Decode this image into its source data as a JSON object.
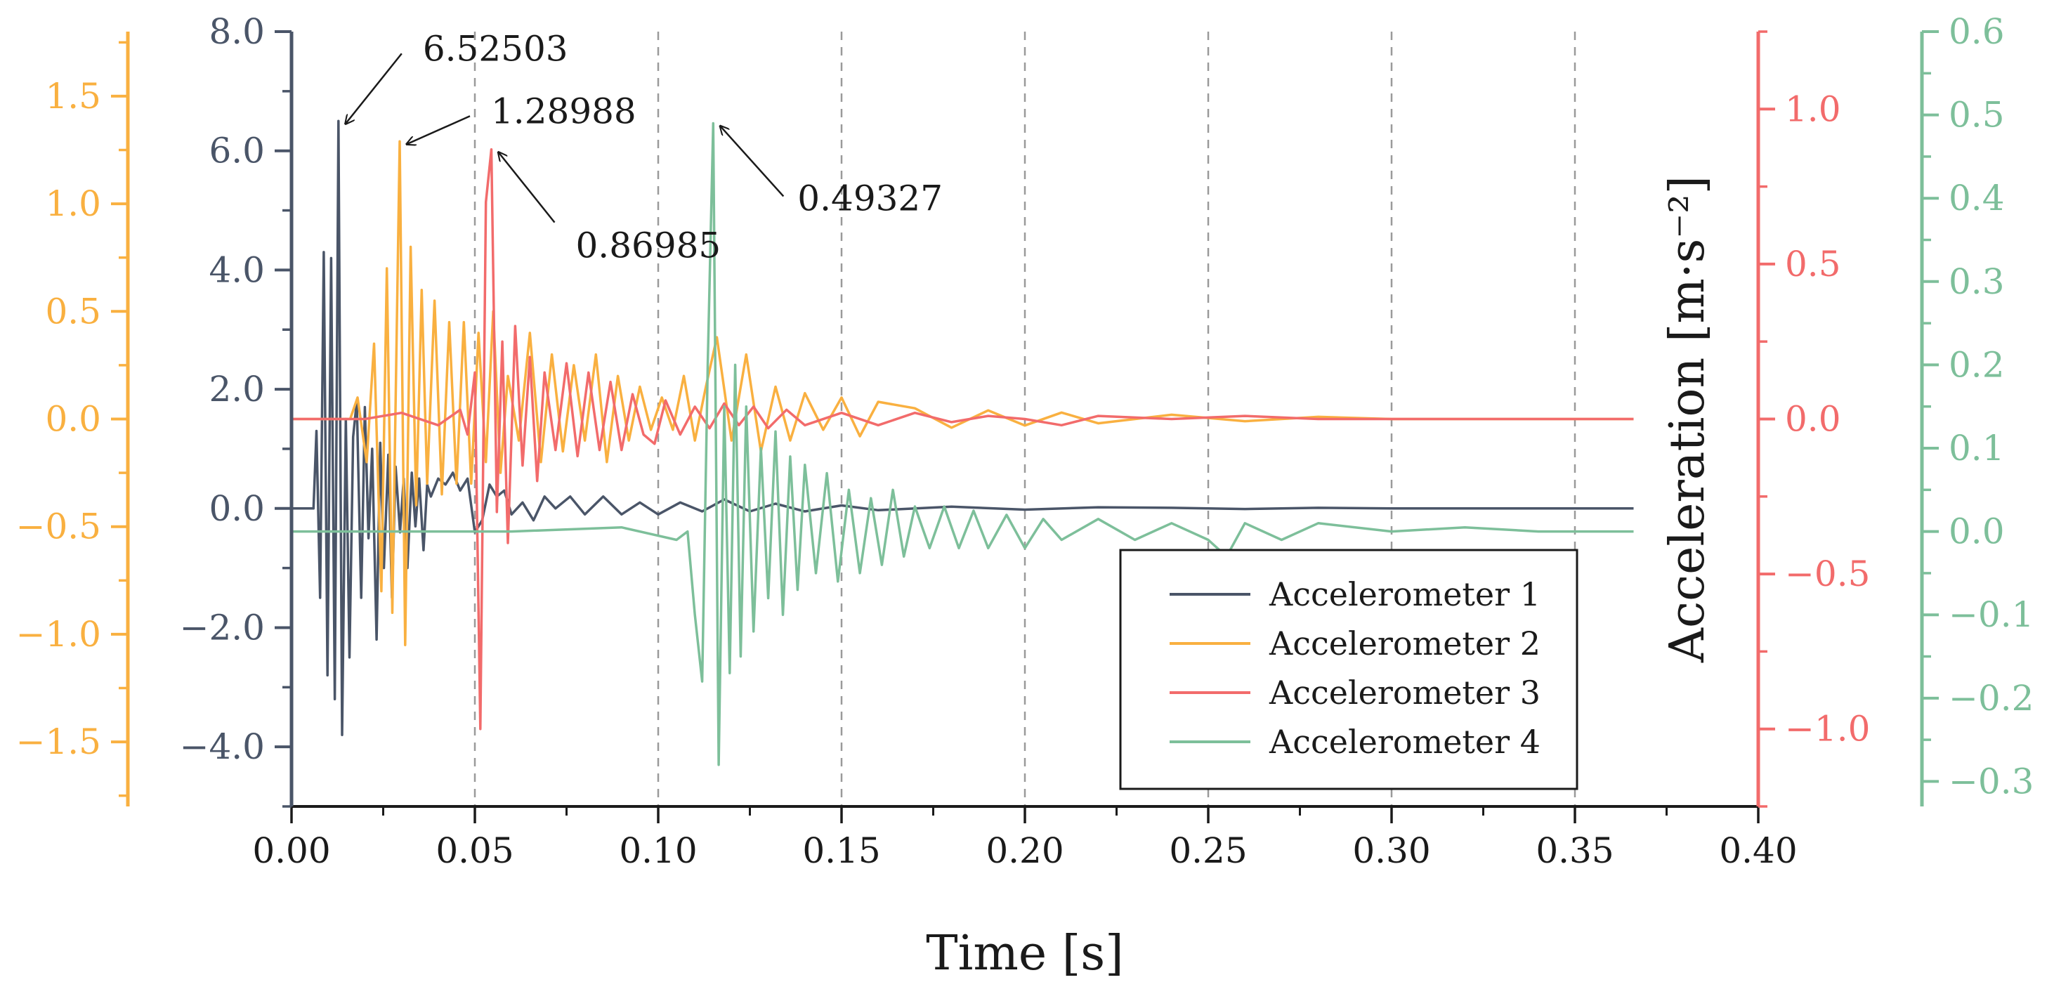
{
  "chart_data": {
    "type": "line",
    "xlabel": "Time [s]",
    "ylabel": "Acceleration [m·s⁻²]",
    "xlim": [
      0.0,
      0.4
    ],
    "x_ticks": [
      "0.00",
      "0.05",
      "0.10",
      "0.15",
      "0.20",
      "0.25",
      "0.30",
      "0.35",
      "0.40"
    ],
    "grid": "vertical dashed lines at 0.05 s intervals",
    "legend_position": "bottom-right",
    "axes": [
      {
        "id": "a1",
        "side": "left-inner",
        "color": "#4a5568",
        "ylim": [
          -5.0,
          8.0
        ],
        "ticks": [
          "8.0",
          "6.0",
          "4.0",
          "2.0",
          "0.0",
          "−2.0",
          "−4.0"
        ],
        "tick_values": [
          8,
          6,
          4,
          2,
          0,
          -2,
          -4
        ]
      },
      {
        "id": "a2",
        "side": "left-outer",
        "color": "#f9b040",
        "ylim": [
          -1.8,
          1.8
        ],
        "ticks": [
          "1.5",
          "1.0",
          "0.5",
          "0.0",
          "−0.5",
          "−1.0",
          "−1.5"
        ],
        "tick_values": [
          1.5,
          1.0,
          0.5,
          0.0,
          -0.5,
          -1.0,
          -1.5
        ]
      },
      {
        "id": "a3",
        "side": "right-inner",
        "color": "#f26b6b",
        "ylim": [
          -1.25,
          1.25
        ],
        "ticks": [
          "1.0",
          "0.5",
          "0.0",
          "−0.5",
          "−1.0"
        ],
        "tick_values": [
          1.0,
          0.5,
          0.0,
          -0.5,
          -1.0
        ]
      },
      {
        "id": "a4",
        "side": "right-outer",
        "color": "#7dbf9a",
        "ylim": [
          -0.33,
          0.6
        ],
        "ticks": [
          "0.6",
          "0.5",
          "0.4",
          "0.3",
          "0.2",
          "0.1",
          "0.0",
          "−0.1",
          "−0.2",
          "−0.3"
        ],
        "tick_values": [
          0.6,
          0.5,
          0.4,
          0.3,
          0.2,
          0.1,
          0.0,
          -0.1,
          -0.2,
          -0.3
        ]
      }
    ],
    "series": [
      {
        "name": "Accelerometer 1",
        "axis": "a1",
        "color": "#4a5568",
        "x": [
          0.0,
          0.006,
          0.0068,
          0.0078,
          0.0088,
          0.0098,
          0.0108,
          0.0118,
          0.0128,
          0.0138,
          0.0148,
          0.0158,
          0.0168,
          0.0178,
          0.019,
          0.02,
          0.021,
          0.022,
          0.0232,
          0.0242,
          0.0252,
          0.0264,
          0.0274,
          0.0284,
          0.0296,
          0.0306,
          0.0316,
          0.0328,
          0.0338,
          0.0348,
          0.036,
          0.037,
          0.038,
          0.04,
          0.042,
          0.044,
          0.046,
          0.048,
          0.05,
          0.052,
          0.054,
          0.056,
          0.058,
          0.06,
          0.063,
          0.066,
          0.069,
          0.072,
          0.076,
          0.08,
          0.085,
          0.09,
          0.095,
          0.1,
          0.106,
          0.112,
          0.118,
          0.125,
          0.132,
          0.14,
          0.15,
          0.16,
          0.18,
          0.2,
          0.22,
          0.24,
          0.26,
          0.28,
          0.3,
          0.32,
          0.34,
          0.366
        ],
        "y": [
          0.0,
          0.0,
          1.3,
          -1.5,
          4.3,
          -2.8,
          4.2,
          -3.2,
          6.5,
          -3.8,
          1.5,
          -2.5,
          1.2,
          1.8,
          -1.5,
          1.7,
          -0.5,
          1.0,
          -2.2,
          1.1,
          -1.0,
          0.9,
          -1.5,
          0.7,
          -0.4,
          0.5,
          -1.0,
          0.6,
          -0.3,
          0.5,
          -0.7,
          0.4,
          0.2,
          0.5,
          0.4,
          0.6,
          0.3,
          0.5,
          -0.4,
          -0.2,
          0.4,
          0.2,
          0.3,
          -0.1,
          0.1,
          -0.2,
          0.2,
          0.0,
          0.2,
          -0.1,
          0.2,
          -0.1,
          0.1,
          -0.1,
          0.1,
          -0.05,
          0.15,
          -0.05,
          0.08,
          -0.05,
          0.05,
          -0.03,
          0.03,
          -0.02,
          0.02,
          0.01,
          -0.01,
          0.01,
          0.0,
          0.0,
          0.0,
          0.0
        ]
      },
      {
        "name": "Accelerometer 2",
        "axis": "a2",
        "color": "#f9b040",
        "x": [
          0.0,
          0.016,
          0.018,
          0.0205,
          0.0225,
          0.0245,
          0.026,
          0.0275,
          0.0295,
          0.031,
          0.0325,
          0.034,
          0.0355,
          0.037,
          0.039,
          0.041,
          0.043,
          0.045,
          0.047,
          0.049,
          0.051,
          0.053,
          0.055,
          0.057,
          0.059,
          0.062,
          0.065,
          0.068,
          0.071,
          0.074,
          0.077,
          0.08,
          0.083,
          0.086,
          0.089,
          0.092,
          0.095,
          0.098,
          0.101,
          0.104,
          0.107,
          0.11,
          0.113,
          0.116,
          0.12,
          0.124,
          0.128,
          0.132,
          0.136,
          0.14,
          0.145,
          0.15,
          0.155,
          0.16,
          0.17,
          0.18,
          0.19,
          0.2,
          0.21,
          0.22,
          0.24,
          0.26,
          0.28,
          0.3,
          0.33,
          0.366
        ],
        "y": [
          0.0,
          0.0,
          0.1,
          -0.2,
          0.35,
          -0.8,
          0.7,
          -0.9,
          1.29,
          -1.05,
          0.8,
          -0.4,
          0.6,
          -0.3,
          0.55,
          -0.35,
          0.45,
          -0.3,
          0.45,
          -0.3,
          0.4,
          -0.2,
          0.5,
          -0.25,
          0.2,
          -0.1,
          0.4,
          -0.2,
          0.3,
          -0.15,
          0.25,
          -0.1,
          0.3,
          -0.2,
          0.2,
          -0.1,
          0.15,
          -0.05,
          0.1,
          -0.05,
          0.2,
          -0.1,
          0.15,
          0.38,
          -0.1,
          0.3,
          -0.15,
          0.15,
          -0.1,
          0.12,
          -0.05,
          0.1,
          -0.08,
          0.08,
          0.05,
          -0.04,
          0.04,
          -0.03,
          0.03,
          -0.02,
          0.02,
          -0.01,
          0.01,
          0.0,
          0.0,
          0.0
        ]
      },
      {
        "name": "Accelerometer 3",
        "axis": "a3",
        "color": "#f26b6b",
        "x": [
          0.0,
          0.02,
          0.03,
          0.04,
          0.046,
          0.048,
          0.05,
          0.0515,
          0.053,
          0.0545,
          0.056,
          0.0575,
          0.059,
          0.061,
          0.063,
          0.065,
          0.067,
          0.069,
          0.072,
          0.075,
          0.078,
          0.081,
          0.084,
          0.087,
          0.09,
          0.093,
          0.096,
          0.099,
          0.102,
          0.106,
          0.11,
          0.114,
          0.118,
          0.122,
          0.126,
          0.13,
          0.135,
          0.14,
          0.15,
          0.16,
          0.17,
          0.18,
          0.19,
          0.2,
          0.21,
          0.22,
          0.24,
          0.26,
          0.28,
          0.3,
          0.33,
          0.366
        ],
        "y": [
          0.0,
          0.0,
          0.02,
          -0.02,
          0.03,
          -0.05,
          0.15,
          -1.0,
          0.7,
          0.87,
          -0.3,
          0.25,
          -0.4,
          0.3,
          -0.15,
          0.2,
          -0.2,
          0.15,
          -0.1,
          0.18,
          -0.12,
          0.15,
          -0.1,
          0.12,
          -0.1,
          0.08,
          -0.05,
          -0.08,
          0.06,
          -0.05,
          0.04,
          -0.03,
          0.05,
          -0.02,
          0.04,
          -0.03,
          0.03,
          -0.02,
          0.02,
          -0.02,
          0.02,
          -0.01,
          0.01,
          0.0,
          -0.02,
          0.01,
          0.0,
          0.01,
          0.0,
          0.0,
          0.0,
          0.0
        ]
      },
      {
        "name": "Accelerometer 4",
        "axis": "a4",
        "color": "#7dbf9a",
        "x": [
          0.0,
          0.06,
          0.09,
          0.105,
          0.108,
          0.11,
          0.112,
          0.1135,
          0.115,
          0.1165,
          0.118,
          0.1195,
          0.121,
          0.1225,
          0.124,
          0.126,
          0.128,
          0.13,
          0.132,
          0.134,
          0.136,
          0.138,
          0.14,
          0.143,
          0.146,
          0.149,
          0.152,
          0.155,
          0.158,
          0.161,
          0.164,
          0.167,
          0.17,
          0.174,
          0.178,
          0.182,
          0.186,
          0.19,
          0.195,
          0.2,
          0.205,
          0.21,
          0.22,
          0.23,
          0.24,
          0.25,
          0.255,
          0.26,
          0.27,
          0.28,
          0.3,
          0.32,
          0.34,
          0.366
        ],
        "y": [
          0.0,
          0.0,
          0.005,
          -0.01,
          0.0,
          -0.1,
          -0.18,
          0.2,
          0.49,
          -0.28,
          0.15,
          -0.17,
          0.2,
          -0.15,
          0.15,
          -0.12,
          0.1,
          -0.08,
          0.12,
          -0.1,
          0.09,
          -0.07,
          0.08,
          -0.05,
          0.07,
          -0.06,
          0.05,
          -0.05,
          0.04,
          -0.04,
          0.05,
          -0.03,
          0.03,
          -0.02,
          0.03,
          -0.02,
          0.025,
          -0.02,
          0.02,
          -0.02,
          0.015,
          -0.01,
          0.015,
          -0.01,
          0.01,
          -0.01,
          -0.03,
          0.01,
          -0.01,
          0.01,
          0.0,
          0.005,
          0.0,
          0.0
        ]
      }
    ],
    "annotations": [
      {
        "text": "6.52503",
        "series": "Accelerometer 1",
        "x": 0.0128,
        "y": 6.5
      },
      {
        "text": "1.28988",
        "series": "Accelerometer 2",
        "x": 0.0295,
        "y": 1.29
      },
      {
        "text": "0.86985",
        "series": "Accelerometer 3",
        "x": 0.0545,
        "y": 0.87
      },
      {
        "text": "0.49327",
        "series": "Accelerometer 4",
        "x": 0.115,
        "y": 0.49
      }
    ]
  }
}
